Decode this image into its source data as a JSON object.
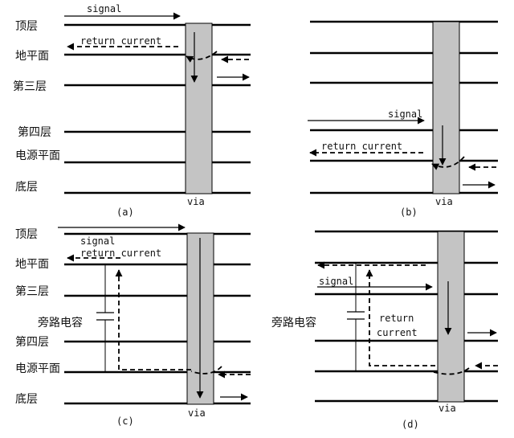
{
  "layer_labels": {
    "top": "顶层",
    "ground": "地平面",
    "third": "第三层",
    "fourth": "第四层",
    "power": "电源平面",
    "bottom": "底层"
  },
  "signal": "signal",
  "return_current": "return current",
  "return_word": "return",
  "current_word": "current",
  "via": "via",
  "bypass_cap": "旁路电容",
  "captions": {
    "a": "(a)",
    "b": "(b)",
    "c": "(c)",
    "d": "(d)"
  }
}
